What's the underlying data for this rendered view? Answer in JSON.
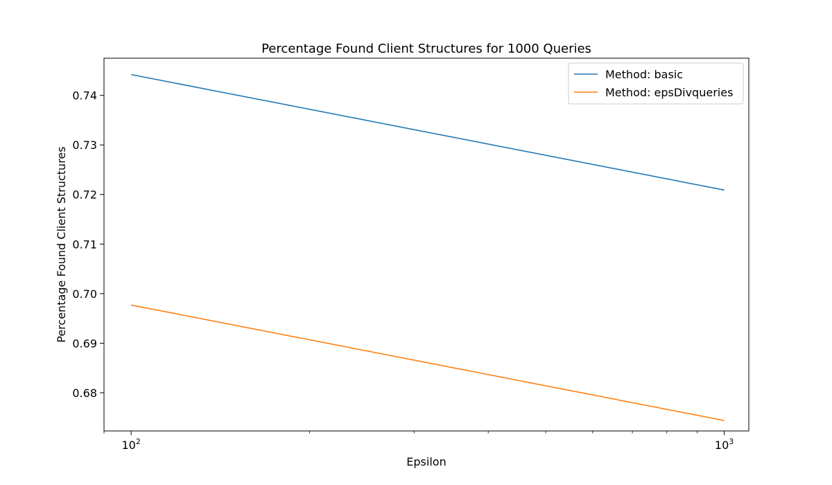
{
  "chart_data": {
    "type": "line",
    "title": "Percentage Found Client Structures for 1000 Queries",
    "xlabel": "Epsilon",
    "ylabel": "Percentage Found Client Structures",
    "xscale": "log",
    "xlim": [
      90,
      1100
    ],
    "ylim": [
      0.6723,
      0.7475
    ],
    "x_ticks": [
      {
        "value": 100,
        "base": "10",
        "exp": "2"
      },
      {
        "value": 1000,
        "base": "10",
        "exp": "3"
      }
    ],
    "y_ticks": [
      0.68,
      0.69,
      0.7,
      0.71,
      0.72,
      0.73,
      0.74
    ],
    "y_tick_labels": [
      "0.68",
      "0.69",
      "0.70",
      "0.71",
      "0.72",
      "0.73",
      "0.74"
    ],
    "grid": false,
    "legend_position": "top-right",
    "series": [
      {
        "name": "Method: basic",
        "color": "#1f77b4",
        "x": [
          100,
          1000
        ],
        "y": [
          0.7442,
          0.7209
        ]
      },
      {
        "name": "Method: epsDivqueries",
        "color": "#ff7f0e",
        "x": [
          100,
          1000
        ],
        "y": [
          0.6977,
          0.6744
        ]
      }
    ]
  }
}
